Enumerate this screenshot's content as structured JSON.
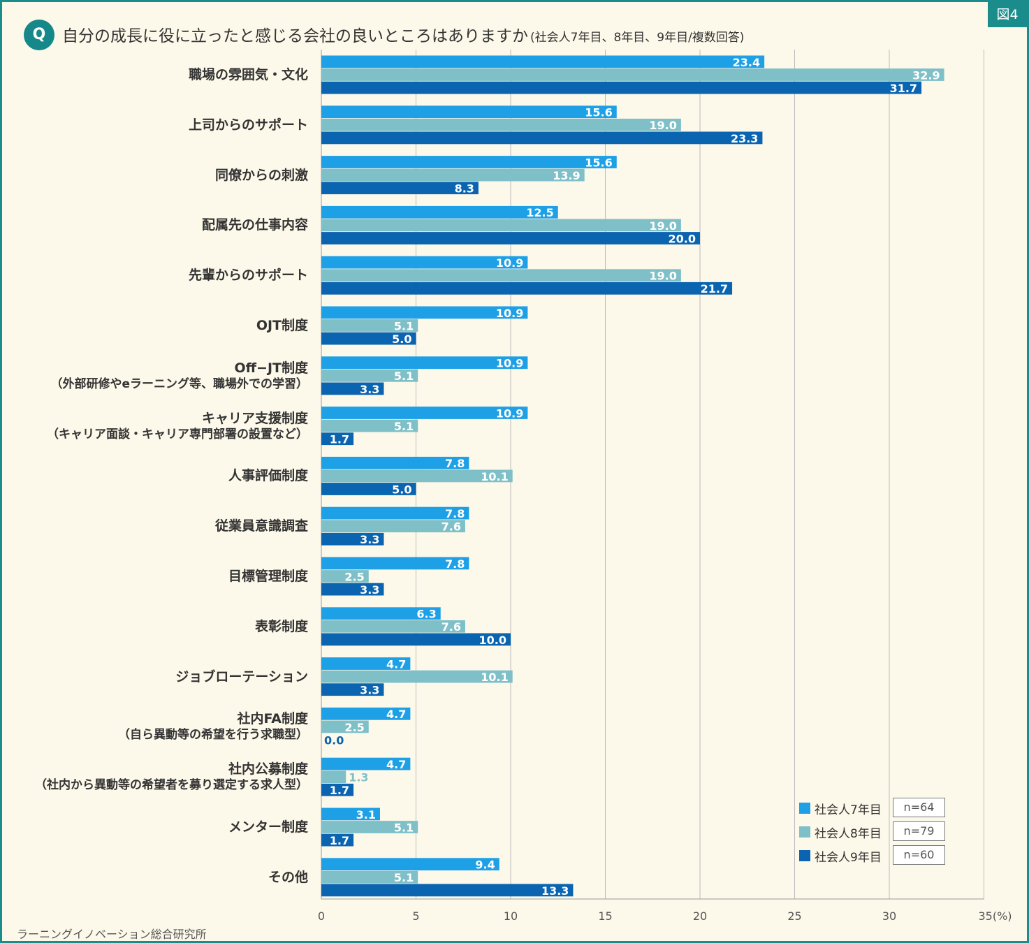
{
  "figure_label": "図4",
  "question_mark": "Q",
  "title": "自分の成長に役に立ったと感じる会社の良いところはありますか",
  "subtitle": "(社会人7年目、8年目、9年目/複数回答)",
  "credit": "ラーニングイノベーション総合研究所",
  "colors": {
    "s7": "#1ea0e6",
    "s8": "#7fc0c8",
    "s9": "#0a64b0",
    "grid": "#bbbbbb",
    "teal": "#1a8c8c"
  },
  "chart_data": {
    "type": "bar",
    "orientation": "horizontal",
    "title": "自分の成長に役に立ったと感じる会社の良いところはありますか",
    "xlabel": "",
    "ylabel": "",
    "xlim": [
      0,
      35
    ],
    "x_ticks": [
      "0",
      "5",
      "10",
      "15",
      "20",
      "25",
      "30",
      "35(%)"
    ],
    "categories": [
      {
        "label": "職場の雰囲気・文化",
        "sub": ""
      },
      {
        "label": "上司からのサポート",
        "sub": ""
      },
      {
        "label": "同僚からの刺激",
        "sub": ""
      },
      {
        "label": "配属先の仕事内容",
        "sub": ""
      },
      {
        "label": "先輩からのサポート",
        "sub": ""
      },
      {
        "label": "OJT制度",
        "sub": ""
      },
      {
        "label": "Off−JT制度",
        "sub": "（外部研修やeラーニング等、職場外での学習）"
      },
      {
        "label": "キャリア支援制度",
        "sub": "（キャリア面談・キャリア専門部署の設置など）"
      },
      {
        "label": "人事評価制度",
        "sub": ""
      },
      {
        "label": "従業員意識調査",
        "sub": ""
      },
      {
        "label": "目標管理制度",
        "sub": ""
      },
      {
        "label": "表彰制度",
        "sub": ""
      },
      {
        "label": "ジョブローテーション",
        "sub": ""
      },
      {
        "label": "社内FA制度",
        "sub": "（自ら異動等の希望を行う求職型）"
      },
      {
        "label": "社内公募制度",
        "sub": "（社内から異動等の希望者を募り選定する求人型）"
      },
      {
        "label": "メンター制度",
        "sub": ""
      },
      {
        "label": "その他",
        "sub": ""
      }
    ],
    "series": [
      {
        "name": "社会人7年目",
        "n": "n=64",
        "color": "#1ea0e6",
        "values": [
          23.4,
          15.6,
          15.6,
          12.5,
          10.9,
          10.9,
          10.9,
          10.9,
          7.8,
          7.8,
          7.8,
          6.3,
          4.7,
          4.7,
          4.7,
          3.1,
          9.4
        ],
        "labels": [
          "23.4",
          "15.6",
          "15.6",
          "12.5",
          "10.9",
          "10.9",
          "10.9",
          "10.9",
          "7.8",
          "7.8",
          "7.8",
          "6.3",
          "4.7",
          "4.7",
          "4.7",
          "3.1",
          "9.4"
        ]
      },
      {
        "name": "社会人8年目",
        "n": "n=79",
        "color": "#7fc0c8",
        "values": [
          32.9,
          19.0,
          13.9,
          19.0,
          19.0,
          5.1,
          5.1,
          5.1,
          10.1,
          7.6,
          2.5,
          7.6,
          10.1,
          2.5,
          1.3,
          5.1,
          5.1
        ],
        "labels": [
          "32.9",
          "19.0",
          "13.9",
          "19.0",
          "19.0",
          "5.1",
          "5.1",
          "5.1",
          "10.1",
          "7.6",
          "2.5",
          "7.6",
          "10.1",
          "2.5",
          "1.3",
          "5.1",
          "5.1"
        ]
      },
      {
        "name": "社会人9年目",
        "n": "n=60",
        "color": "#0a64b0",
        "values": [
          31.7,
          23.3,
          8.3,
          20.0,
          21.7,
          5.0,
          3.3,
          1.7,
          5.0,
          3.3,
          3.3,
          10.0,
          3.3,
          0.0,
          1.7,
          1.7,
          13.3
        ],
        "labels": [
          "31.7",
          "23.3",
          "8.3",
          "20.0",
          "21.7",
          "5.0",
          "3.3",
          "1.7",
          "5.0",
          "3.3",
          "3.3",
          "10.0",
          "3.3",
          "0.0",
          "1.7",
          "1.7",
          "13.3"
        ]
      }
    ],
    "legend_position": "bottom-right"
  }
}
